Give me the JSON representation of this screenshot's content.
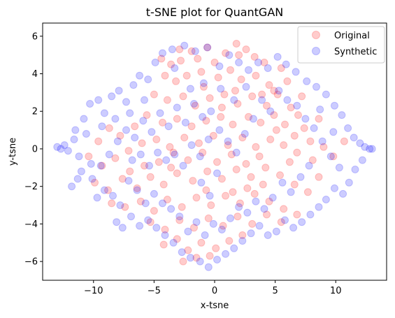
{
  "chart_data": {
    "type": "scatter",
    "title": "t-SNE plot for QuantGAN",
    "xlabel": "x-tsne",
    "ylabel": "y-tsne",
    "xlim": [
      -14.2,
      14.2
    ],
    "ylim": [
      -7.0,
      6.7
    ],
    "xticks": [
      -10,
      -5,
      0,
      5,
      10
    ],
    "yticks": [
      -6,
      -4,
      -2,
      0,
      2,
      4,
      6
    ],
    "grid": false,
    "legend_position": "top-right",
    "marker_alpha": 0.2,
    "series": [
      {
        "name": "Original",
        "color": "#ff0000",
        "points": [
          [
            -4.4,
            4.8
          ],
          [
            -3.6,
            4.5
          ],
          [
            -2.8,
            4.7
          ],
          [
            -1.9,
            5.2
          ],
          [
            -0.6,
            5.4
          ],
          [
            0.9,
            5.1
          ],
          [
            1.8,
            5.6
          ],
          [
            2.6,
            5.3
          ],
          [
            3.3,
            4.9
          ],
          [
            4.1,
            4.6
          ],
          [
            -4.1,
            3.9
          ],
          [
            -3.2,
            3.6
          ],
          [
            -2.3,
            3.9
          ],
          [
            -1.1,
            4.1
          ],
          [
            0.3,
            3.8
          ],
          [
            1.3,
            4.2
          ],
          [
            2.2,
            3.7
          ],
          [
            3.4,
            3.9
          ],
          [
            4.5,
            3.4
          ],
          [
            5.2,
            2.9
          ],
          [
            -5.0,
            2.9
          ],
          [
            -3.9,
            2.6
          ],
          [
            -2.6,
            2.8
          ],
          [
            -1.6,
            2.3
          ],
          [
            -0.4,
            2.7
          ],
          [
            0.8,
            2.9
          ],
          [
            1.9,
            2.4
          ],
          [
            3.1,
            2.8
          ],
          [
            4.3,
            2.3
          ],
          [
            6.3,
            2.2
          ],
          [
            6.9,
            1.8
          ],
          [
            7.4,
            1.1
          ],
          [
            6.6,
            0.7
          ],
          [
            7.9,
            0.4
          ],
          [
            8.6,
            1.6
          ],
          [
            5.8,
            1.3
          ],
          [
            4.9,
            1.8
          ],
          [
            3.8,
            1.4
          ],
          [
            2.8,
            1.7
          ],
          [
            1.5,
            1.3
          ],
          [
            0.5,
            1.7
          ],
          [
            -0.7,
            1.5
          ],
          [
            -1.9,
            1.2
          ],
          [
            -3.1,
            1.6
          ],
          [
            -4.3,
            1.4
          ],
          [
            -5.6,
            1.8
          ],
          [
            -6.6,
            1.2
          ],
          [
            -7.8,
            0.7
          ],
          [
            -8.7,
            1.1
          ],
          [
            -9.6,
            0.4
          ],
          [
            -10.4,
            -0.4
          ],
          [
            -9.3,
            -0.9
          ],
          [
            -8.2,
            -0.5
          ],
          [
            -7.1,
            -0.1
          ],
          [
            -6.0,
            0.3
          ],
          [
            -4.8,
            0.5
          ],
          [
            -3.7,
            0.1
          ],
          [
            -2.5,
            0.6
          ],
          [
            -1.3,
            0.3
          ],
          [
            -0.1,
            0.7
          ],
          [
            1.1,
            0.2
          ],
          [
            2.3,
            0.6
          ],
          [
            3.4,
            0.1
          ],
          [
            4.6,
            0.5
          ],
          [
            5.7,
            0.2
          ],
          [
            6.8,
            -0.2
          ],
          [
            8.1,
            -0.6
          ],
          [
            9.0,
            0.1
          ],
          [
            9.8,
            -0.4
          ],
          [
            10.7,
            0.4
          ],
          [
            -9.9,
            -1.8
          ],
          [
            -8.8,
            -2.2
          ],
          [
            -7.6,
            -1.6
          ],
          [
            -6.4,
            -2.1
          ],
          [
            -5.3,
            -1.5
          ],
          [
            -4.2,
            -1.9
          ],
          [
            -3.1,
            -1.3
          ],
          [
            -1.8,
            -1.7
          ],
          [
            -0.6,
            -1.2
          ],
          [
            0.6,
            -1.6
          ],
          [
            1.8,
            -1.1
          ],
          [
            3.0,
            -1.5
          ],
          [
            4.2,
            -1.0
          ],
          [
            5.4,
            -1.4
          ],
          [
            6.6,
            -1.9
          ],
          [
            7.7,
            -2.3
          ],
          [
            8.6,
            -1.5
          ],
          [
            -7.4,
            -3.1
          ],
          [
            -6.1,
            -2.8
          ],
          [
            -5.0,
            -3.3
          ],
          [
            -3.9,
            -2.7
          ],
          [
            -2.7,
            -3.1
          ],
          [
            -1.5,
            -2.6
          ],
          [
            -0.3,
            -3.0
          ],
          [
            0.9,
            -2.5
          ],
          [
            2.1,
            -2.9
          ],
          [
            3.3,
            -2.4
          ],
          [
            4.5,
            -2.8
          ],
          [
            5.7,
            -3.2
          ],
          [
            6.8,
            -3.5
          ],
          [
            -5.3,
            -3.9
          ],
          [
            -4.1,
            -4.3
          ],
          [
            -2.9,
            -3.8
          ],
          [
            -1.7,
            -4.2
          ],
          [
            -0.5,
            -3.7
          ],
          [
            0.7,
            -4.1
          ],
          [
            1.9,
            -3.6
          ],
          [
            3.1,
            -4.0
          ],
          [
            4.3,
            -3.5
          ],
          [
            5.5,
            -3.9
          ],
          [
            -4.2,
            -5.1
          ],
          [
            -3.1,
            -4.8
          ],
          [
            -2.2,
            -5.4
          ],
          [
            -1.1,
            -5.0
          ],
          [
            0.1,
            -5.3
          ],
          [
            1.2,
            -4.9
          ],
          [
            -2.6,
            -6.0
          ],
          [
            -1.5,
            -5.8
          ],
          [
            -0.4,
            -5.7
          ],
          [
            2.3,
            -4.6
          ],
          [
            3.7,
            -0.4
          ],
          [
            2.6,
            -0.8
          ],
          [
            1.4,
            -0.3
          ],
          [
            0.2,
            -0.7
          ],
          [
            -1.0,
            -0.2
          ],
          [
            -2.2,
            -0.6
          ],
          [
            -3.4,
            -0.2
          ],
          [
            -4.6,
            -0.7
          ],
          [
            7.2,
            2.8
          ],
          [
            6.0,
            3.6
          ],
          [
            5.5,
            4.3
          ],
          [
            4.9,
            3.1
          ],
          [
            2.0,
            5.0
          ],
          [
            0.0,
            4.6
          ],
          [
            -1.4,
            4.8
          ],
          [
            -2.9,
            5.3
          ],
          [
            -0.9,
            3.3
          ],
          [
            0.6,
            2.2
          ],
          [
            1.7,
            3.1
          ],
          [
            3.9,
            2.9
          ],
          [
            5.1,
            1.0
          ],
          [
            6.2,
            -0.7
          ],
          [
            4.0,
            -1.9
          ],
          [
            2.7,
            -2.1
          ],
          [
            1.5,
            -2.3
          ],
          [
            -0.7,
            -2.2
          ],
          [
            -3.6,
            -1.0
          ],
          [
            -5.8,
            -0.9
          ],
          [
            -7.0,
            -1.2
          ],
          [
            -8.5,
            -2.9
          ]
        ]
      },
      {
        "name": "Synthetic",
        "color": "#0000ff",
        "points": [
          [
            -13.0,
            0.1
          ],
          [
            -12.7,
            0.0
          ],
          [
            -12.4,
            0.2
          ],
          [
            -12.1,
            -0.1
          ],
          [
            -11.6,
            0.5
          ],
          [
            -11.2,
            -0.4
          ],
          [
            -11.5,
            1.0
          ],
          [
            -11.0,
            -1.2
          ],
          [
            -10.6,
            0.8
          ],
          [
            -10.2,
            -0.8
          ],
          [
            -11.8,
            -2.0
          ],
          [
            -11.3,
            -1.6
          ],
          [
            -10.8,
            1.6
          ],
          [
            -10.3,
            2.4
          ],
          [
            -9.6,
            2.6
          ],
          [
            -9.1,
            1.9
          ],
          [
            -8.5,
            2.8
          ],
          [
            -7.9,
            3.1
          ],
          [
            -7.3,
            2.5
          ],
          [
            -6.7,
            3.4
          ],
          [
            -6.2,
            3.9
          ],
          [
            -5.5,
            3.7
          ],
          [
            -4.9,
            4.6
          ],
          [
            -4.3,
            5.1
          ],
          [
            -3.5,
            5.3
          ],
          [
            -2.5,
            5.5
          ],
          [
            -1.6,
            5.2
          ],
          [
            -0.6,
            5.4
          ],
          [
            0.4,
            4.4
          ],
          [
            1.2,
            5.0
          ],
          [
            2.0,
            4.6
          ],
          [
            2.8,
            4.2
          ],
          [
            3.6,
            4.6
          ],
          [
            4.4,
            4.3
          ],
          [
            5.2,
            4.9
          ],
          [
            5.9,
            4.5
          ],
          [
            6.7,
            4.1
          ],
          [
            7.6,
            3.6
          ],
          [
            8.4,
            3.3
          ],
          [
            9.2,
            2.9
          ],
          [
            9.9,
            2.3
          ],
          [
            10.5,
            1.8
          ],
          [
            11.0,
            1.1
          ],
          [
            11.5,
            0.6
          ],
          [
            12.0,
            0.3
          ],
          [
            12.4,
            0.1
          ],
          [
            12.8,
            0.0
          ],
          [
            13.0,
            0.0
          ],
          [
            12.2,
            -0.6
          ],
          [
            11.6,
            -1.1
          ],
          [
            11.1,
            -1.8
          ],
          [
            10.6,
            -2.4
          ],
          [
            9.9,
            -2.1
          ],
          [
            9.2,
            -2.7
          ],
          [
            8.6,
            -3.1
          ],
          [
            7.9,
            -3.5
          ],
          [
            7.2,
            -3.9
          ],
          [
            6.5,
            -4.2
          ],
          [
            5.8,
            -3.8
          ],
          [
            5.1,
            -4.4
          ],
          [
            4.4,
            -4.6
          ],
          [
            3.7,
            -4.1
          ],
          [
            3.0,
            -4.5
          ],
          [
            2.3,
            -4.9
          ],
          [
            1.6,
            -5.3
          ],
          [
            0.9,
            -5.6
          ],
          [
            0.2,
            -5.9
          ],
          [
            -0.5,
            -6.3
          ],
          [
            -1.2,
            -6.0
          ],
          [
            -2.0,
            -5.8
          ],
          [
            -2.7,
            -5.5
          ],
          [
            -3.4,
            -5.0
          ],
          [
            -4.1,
            -4.6
          ],
          [
            -4.8,
            -4.2
          ],
          [
            -5.5,
            -3.8
          ],
          [
            -6.2,
            -4.1
          ],
          [
            -6.9,
            -3.6
          ],
          [
            -7.6,
            -4.2
          ],
          [
            -8.1,
            -3.9
          ],
          [
            -7.8,
            -3.0
          ],
          [
            -8.4,
            -2.5
          ],
          [
            -9.1,
            -2.2
          ],
          [
            -9.7,
            -2.6
          ],
          [
            -10.1,
            -1.6
          ],
          [
            -9.4,
            -0.9
          ],
          [
            -8.7,
            -0.3
          ],
          [
            -8.0,
            0.4
          ],
          [
            -7.3,
            1.0
          ],
          [
            -6.6,
            0.6
          ],
          [
            -5.9,
            1.5
          ],
          [
            -5.2,
            0.9
          ],
          [
            -4.5,
            1.9
          ],
          [
            -3.8,
            1.2
          ],
          [
            -3.1,
            2.2
          ],
          [
            -2.4,
            1.4
          ],
          [
            -1.7,
            2.4
          ],
          [
            -1.0,
            1.7
          ],
          [
            -0.3,
            2.0
          ],
          [
            0.4,
            1.0
          ],
          [
            1.1,
            0.4
          ],
          [
            1.8,
            -0.2
          ],
          [
            2.5,
            0.8
          ],
          [
            3.2,
            1.6
          ],
          [
            3.9,
            2.6
          ],
          [
            4.6,
            2.0
          ],
          [
            5.3,
            3.1
          ],
          [
            6.0,
            2.6
          ],
          [
            6.8,
            2.3
          ],
          [
            7.5,
            1.6
          ],
          [
            8.2,
            1.1
          ],
          [
            8.9,
            0.4
          ],
          [
            9.6,
            -0.4
          ],
          [
            10.3,
            -1.0
          ],
          [
            9.8,
            0.9
          ],
          [
            8.7,
            2.1
          ],
          [
            7.8,
            -0.9
          ],
          [
            7.1,
            -1.5
          ],
          [
            6.3,
            -2.3
          ],
          [
            5.6,
            -1.8
          ],
          [
            4.8,
            -2.6
          ],
          [
            4.1,
            -3.2
          ],
          [
            3.4,
            -2.8
          ],
          [
            2.7,
            -3.4
          ],
          [
            2.0,
            -3.1
          ],
          [
            1.3,
            -3.7
          ],
          [
            0.6,
            -4.3
          ],
          [
            -0.1,
            -4.0
          ],
          [
            -0.8,
            -4.6
          ],
          [
            -1.5,
            -3.9
          ],
          [
            -2.2,
            -4.4
          ],
          [
            -2.9,
            -3.6
          ],
          [
            -3.6,
            -3.2
          ],
          [
            -4.3,
            -2.9
          ],
          [
            -5.0,
            -2.4
          ],
          [
            -5.7,
            -2.9
          ],
          [
            -6.4,
            -2.2
          ],
          [
            -7.1,
            -1.7
          ],
          [
            -6.8,
            -0.6
          ],
          [
            -6.1,
            -0.3
          ],
          [
            -5.4,
            -0.9
          ],
          [
            -4.7,
            -0.2
          ],
          [
            -4.0,
            -0.6
          ],
          [
            -3.3,
            -0.3
          ],
          [
            -2.6,
            -0.9
          ],
          [
            -1.9,
            0.2
          ],
          [
            -1.2,
            -0.4
          ],
          [
            -0.5,
            0.5
          ],
          [
            0.2,
            -1.3
          ],
          [
            -0.4,
            -2.5
          ],
          [
            -1.1,
            -1.8
          ],
          [
            -2.0,
            3.2
          ],
          [
            -0.9,
            3.5
          ],
          [
            0.5,
            3.2
          ],
          [
            1.6,
            2.6
          ],
          [
            2.6,
            3.3
          ],
          [
            -3.3,
            4.3
          ],
          [
            -5.8,
            2.6
          ],
          [
            -7.0,
            1.9
          ],
          [
            -8.2,
            1.6
          ],
          [
            -9.3,
            1.2
          ]
        ]
      }
    ]
  }
}
